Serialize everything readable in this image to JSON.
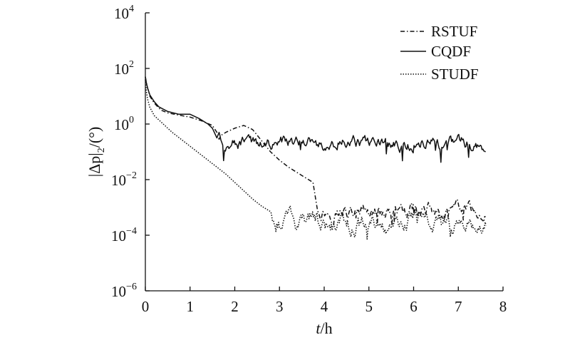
{
  "chart_data": {
    "type": "line",
    "xlabel": {
      "italic": "t",
      "rest": "/h"
    },
    "ylabel": {
      "bars_text": "|Δp|",
      "subscript": "2",
      "unit": "/(°)"
    },
    "xlim": [
      0,
      8
    ],
    "ylim_log10": [
      -6,
      4
    ],
    "y_scale": "log",
    "x_ticks": [
      {
        "value": 0,
        "label": "0"
      },
      {
        "value": 1,
        "label": "1"
      },
      {
        "value": 2,
        "label": "2"
      },
      {
        "value": 3,
        "label": "3"
      },
      {
        "value": 4,
        "label": "4"
      },
      {
        "value": 5,
        "label": "5"
      },
      {
        "value": 6,
        "label": "6"
      },
      {
        "value": 7,
        "label": "7"
      },
      {
        "value": 8,
        "label": "8"
      }
    ],
    "y_ticks": [
      {
        "exp": 4,
        "base": "10",
        "sup": "4"
      },
      {
        "exp": 2,
        "base": "10",
        "sup": "2"
      },
      {
        "exp": 0,
        "base": "10",
        "sup": "0"
      },
      {
        "exp": -2,
        "base": "10",
        "sup": "−2"
      },
      {
        "exp": -4,
        "base": "10",
        "sup": "−4"
      },
      {
        "exp": -6,
        "base": "10",
        "sup": "−6"
      }
    ],
    "grid": false,
    "legend_position": "top-right",
    "series": [
      {
        "name": "RSTUF",
        "style": "dashdot",
        "color": "#111111",
        "points": [
          [
            0,
            1.7
          ],
          [
            0.02,
            1.5
          ],
          [
            0.05,
            1.3
          ],
          [
            0.1,
            1.0
          ],
          [
            0.2,
            0.75
          ],
          [
            0.35,
            0.5
          ],
          [
            0.5,
            0.4
          ],
          [
            0.75,
            0.32
          ],
          [
            1.0,
            0.25
          ],
          [
            1.25,
            0.12
          ],
          [
            1.5,
            -0.05
          ],
          [
            1.6,
            -0.3
          ],
          [
            1.65,
            -0.55
          ],
          [
            1.7,
            -0.4
          ],
          [
            1.8,
            -0.3
          ],
          [
            2.0,
            -0.15
          ],
          [
            2.2,
            -0.05
          ],
          [
            2.4,
            -0.2
          ],
          [
            2.6,
            -0.6
          ],
          [
            2.8,
            -1.0
          ],
          [
            3.0,
            -1.3
          ],
          [
            3.2,
            -1.55
          ],
          [
            3.4,
            -1.75
          ],
          [
            3.6,
            -1.95
          ],
          [
            3.75,
            -2.1
          ],
          [
            3.8,
            -2.6
          ],
          [
            3.85,
            -3.1
          ]
        ],
        "noise": {
          "start": 3.85,
          "end": 7.62,
          "mean": -3.15,
          "amp": 0.35
        }
      },
      {
        "name": "CQDF",
        "style": "solid",
        "color": "#111111",
        "points": [
          [
            0,
            1.7
          ],
          [
            0.02,
            1.5
          ],
          [
            0.05,
            1.3
          ],
          [
            0.1,
            1.05
          ],
          [
            0.2,
            0.8
          ],
          [
            0.3,
            0.62
          ],
          [
            0.5,
            0.45
          ],
          [
            0.75,
            0.35
          ],
          [
            1.0,
            0.35
          ],
          [
            1.2,
            0.2
          ],
          [
            1.4,
            0.0
          ],
          [
            1.5,
            -0.15
          ],
          [
            1.6,
            -0.5
          ],
          [
            1.65,
            -0.3
          ]
        ],
        "noise": {
          "start": 1.65,
          "end": 7.62,
          "mean": -0.7,
          "amp": 0.3
        }
      },
      {
        "name": "STUDF",
        "style": "dotted",
        "color": "#111111",
        "points": [
          [
            0,
            1.6
          ],
          [
            0.02,
            1.2
          ],
          [
            0.05,
            0.9
          ],
          [
            0.1,
            0.6
          ],
          [
            0.2,
            0.3
          ],
          [
            0.4,
            0.0
          ],
          [
            0.6,
            -0.3
          ],
          [
            0.8,
            -0.55
          ],
          [
            1.0,
            -0.8
          ],
          [
            1.2,
            -1.05
          ],
          [
            1.4,
            -1.3
          ],
          [
            1.6,
            -1.55
          ],
          [
            1.8,
            -1.8
          ],
          [
            2.0,
            -2.1
          ],
          [
            2.2,
            -2.4
          ],
          [
            2.4,
            -2.7
          ],
          [
            2.6,
            -2.95
          ],
          [
            2.8,
            -3.15
          ]
        ],
        "noise": {
          "start": 2.8,
          "end": 7.62,
          "mean": -3.55,
          "amp": 0.45
        }
      }
    ]
  }
}
